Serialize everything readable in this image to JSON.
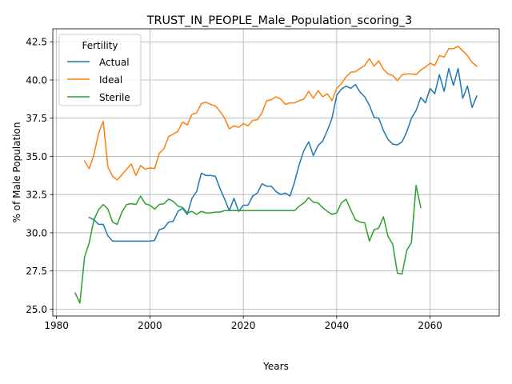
{
  "chart_data": {
    "type": "line",
    "title": "TRUST_IN_PEOPLE_Male_Population_scoring_3",
    "xlabel": "Years",
    "ylabel": "% of Male Population",
    "xlim": [
      1979.2,
      2074.8
    ],
    "ylim": [
      24.55,
      43.35
    ],
    "xticks": [
      1980,
      2000,
      2020,
      2040,
      2060
    ],
    "xtick_labels": [
      "1980",
      "2000",
      "2020",
      "2040",
      "2060"
    ],
    "yticks": [
      25.0,
      27.5,
      30.0,
      32.5,
      35.0,
      37.5,
      40.0,
      42.5
    ],
    "ytick_labels": [
      "25.0",
      "27.5",
      "30.0",
      "32.5",
      "35.0",
      "37.5",
      "40.0",
      "42.5"
    ],
    "grid": true,
    "legend": {
      "title": "Fertility",
      "placement": "top-left"
    },
    "series": [
      {
        "name": "Actual",
        "color": "#1f77b4",
        "x": [
          1987,
          1988,
          1989,
          1990,
          1991,
          1992,
          1993,
          1994,
          1995,
          1996,
          1997,
          1998,
          1999,
          2000,
          2001,
          2002,
          2003,
          2004,
          2005,
          2006,
          2007,
          2008,
          2009,
          2010,
          2011,
          2012,
          2013,
          2014,
          2015,
          2016,
          2017,
          2018,
          2019,
          2020,
          2021,
          2022,
          2023,
          2024,
          2025,
          2026,
          2027,
          2028,
          2029,
          2030,
          2031,
          2032,
          2033,
          2034,
          2035,
          2036,
          2037,
          2038,
          2039,
          2040,
          2041,
          2042,
          2043,
          2044,
          2045,
          2046,
          2047,
          2048,
          2049,
          2050,
          2051,
          2052,
          2053,
          2054,
          2055,
          2056,
          2057,
          2058,
          2059,
          2060,
          2061,
          2062,
          2063,
          2064,
          2065,
          2066,
          2067,
          2068,
          2069,
          2070
        ],
        "y": [
          31.0,
          30.85,
          30.55,
          30.55,
          29.8,
          29.45,
          29.45,
          29.45,
          29.45,
          29.45,
          29.45,
          29.45,
          29.45,
          29.45,
          29.5,
          30.2,
          30.3,
          30.7,
          30.75,
          31.4,
          31.6,
          31.2,
          32.25,
          32.7,
          33.9,
          33.75,
          33.75,
          33.7,
          32.9,
          32.2,
          31.45,
          32.25,
          31.4,
          31.8,
          31.8,
          32.4,
          32.6,
          33.2,
          33.05,
          33.05,
          32.7,
          32.5,
          32.6,
          32.4,
          33.35,
          34.5,
          35.4,
          35.95,
          35.05,
          35.7,
          36.0,
          36.7,
          37.5,
          39.0,
          39.4,
          39.6,
          39.45,
          39.7,
          39.2,
          38.9,
          38.35,
          37.55,
          37.5,
          36.7,
          36.1,
          35.8,
          35.75,
          35.95,
          36.6,
          37.5,
          38.0,
          38.85,
          38.5,
          39.45,
          39.1,
          40.35,
          39.25,
          40.75,
          39.65,
          40.75,
          38.8,
          39.6,
          38.2,
          38.95
        ]
      },
      {
        "name": "Ideal",
        "color": "#ff7f0e",
        "x": [
          1986,
          1987,
          1988,
          1989,
          1990,
          1991,
          1992,
          1993,
          1994,
          1995,
          1996,
          1997,
          1998,
          1999,
          2000,
          2001,
          2002,
          2003,
          2004,
          2005,
          2006,
          2007,
          2008,
          2009,
          2010,
          2011,
          2012,
          2013,
          2014,
          2015,
          2016,
          2017,
          2018,
          2019,
          2020,
          2021,
          2022,
          2023,
          2024,
          2025,
          2026,
          2027,
          2028,
          2029,
          2030,
          2031,
          2032,
          2033,
          2034,
          2035,
          2036,
          2037,
          2038,
          2039,
          2040,
          2041,
          2042,
          2043,
          2044,
          2045,
          2046,
          2047,
          2048,
          2049,
          2050,
          2051,
          2052,
          2053,
          2054,
          2055,
          2056,
          2057,
          2058,
          2059,
          2060,
          2061,
          2062,
          2063,
          2064,
          2065,
          2066,
          2067,
          2068,
          2069,
          2070
        ],
        "y": [
          34.7,
          34.2,
          35.1,
          36.5,
          37.3,
          34.3,
          33.7,
          33.45,
          33.8,
          34.15,
          34.5,
          33.75,
          34.4,
          34.15,
          34.25,
          34.2,
          35.2,
          35.5,
          36.3,
          36.45,
          36.65,
          37.25,
          37.05,
          37.75,
          37.85,
          38.45,
          38.55,
          38.4,
          38.3,
          37.95,
          37.5,
          36.8,
          37.0,
          36.9,
          37.15,
          37.0,
          37.35,
          37.4,
          37.85,
          38.65,
          38.7,
          38.9,
          38.75,
          38.4,
          38.5,
          38.5,
          38.65,
          38.75,
          39.25,
          38.8,
          39.3,
          38.9,
          39.1,
          38.65,
          39.45,
          39.75,
          40.2,
          40.5,
          40.55,
          40.75,
          40.95,
          41.4,
          40.9,
          41.25,
          40.7,
          40.4,
          40.3,
          39.95,
          40.35,
          40.4,
          40.4,
          40.35,
          40.65,
          40.85,
          41.1,
          40.95,
          41.6,
          41.5,
          42.05,
          42.05,
          42.2,
          41.9,
          41.6,
          41.15,
          40.9
        ]
      },
      {
        "name": "Sterile",
        "color": "#2ca02c",
        "x": [
          1984,
          1985,
          1986,
          1987,
          1988,
          1989,
          1990,
          1991,
          1992,
          1993,
          1994,
          1995,
          1996,
          1997,
          1998,
          1999,
          2000,
          2001,
          2002,
          2003,
          2004,
          2005,
          2006,
          2007,
          2008,
          2009,
          2010,
          2011,
          2012,
          2013,
          2014,
          2015,
          2016,
          2017,
          2018,
          2019,
          2020,
          2021,
          2022,
          2023,
          2024,
          2025,
          2026,
          2027,
          2028,
          2029,
          2030,
          2031,
          2032,
          2033,
          2034,
          2035,
          2036,
          2037,
          2038,
          2039,
          2040,
          2041,
          2042,
          2043,
          2044,
          2045,
          2046,
          2047,
          2048,
          2049,
          2050,
          2051,
          2052,
          2053,
          2054,
          2055,
          2056,
          2057,
          2058
        ],
        "y": [
          26.05,
          25.4,
          28.4,
          29.35,
          30.85,
          31.5,
          31.85,
          31.55,
          30.7,
          30.55,
          31.35,
          31.85,
          31.9,
          31.85,
          32.4,
          31.9,
          31.8,
          31.55,
          31.85,
          31.9,
          32.2,
          32.05,
          31.75,
          31.65,
          31.3,
          31.4,
          31.2,
          31.4,
          31.3,
          31.3,
          31.35,
          31.35,
          31.45,
          31.45,
          31.45,
          31.45,
          31.45,
          31.45,
          31.45,
          31.45,
          31.45,
          31.45,
          31.45,
          31.45,
          31.45,
          31.45,
          31.45,
          31.45,
          31.75,
          31.95,
          32.3,
          32.0,
          31.95,
          31.65,
          31.4,
          31.2,
          31.3,
          31.95,
          32.2,
          31.5,
          30.85,
          30.7,
          30.65,
          29.45,
          30.2,
          30.3,
          31.05,
          29.75,
          29.25,
          27.35,
          27.3,
          28.85,
          29.35,
          33.1,
          31.65
        ]
      }
    ]
  }
}
